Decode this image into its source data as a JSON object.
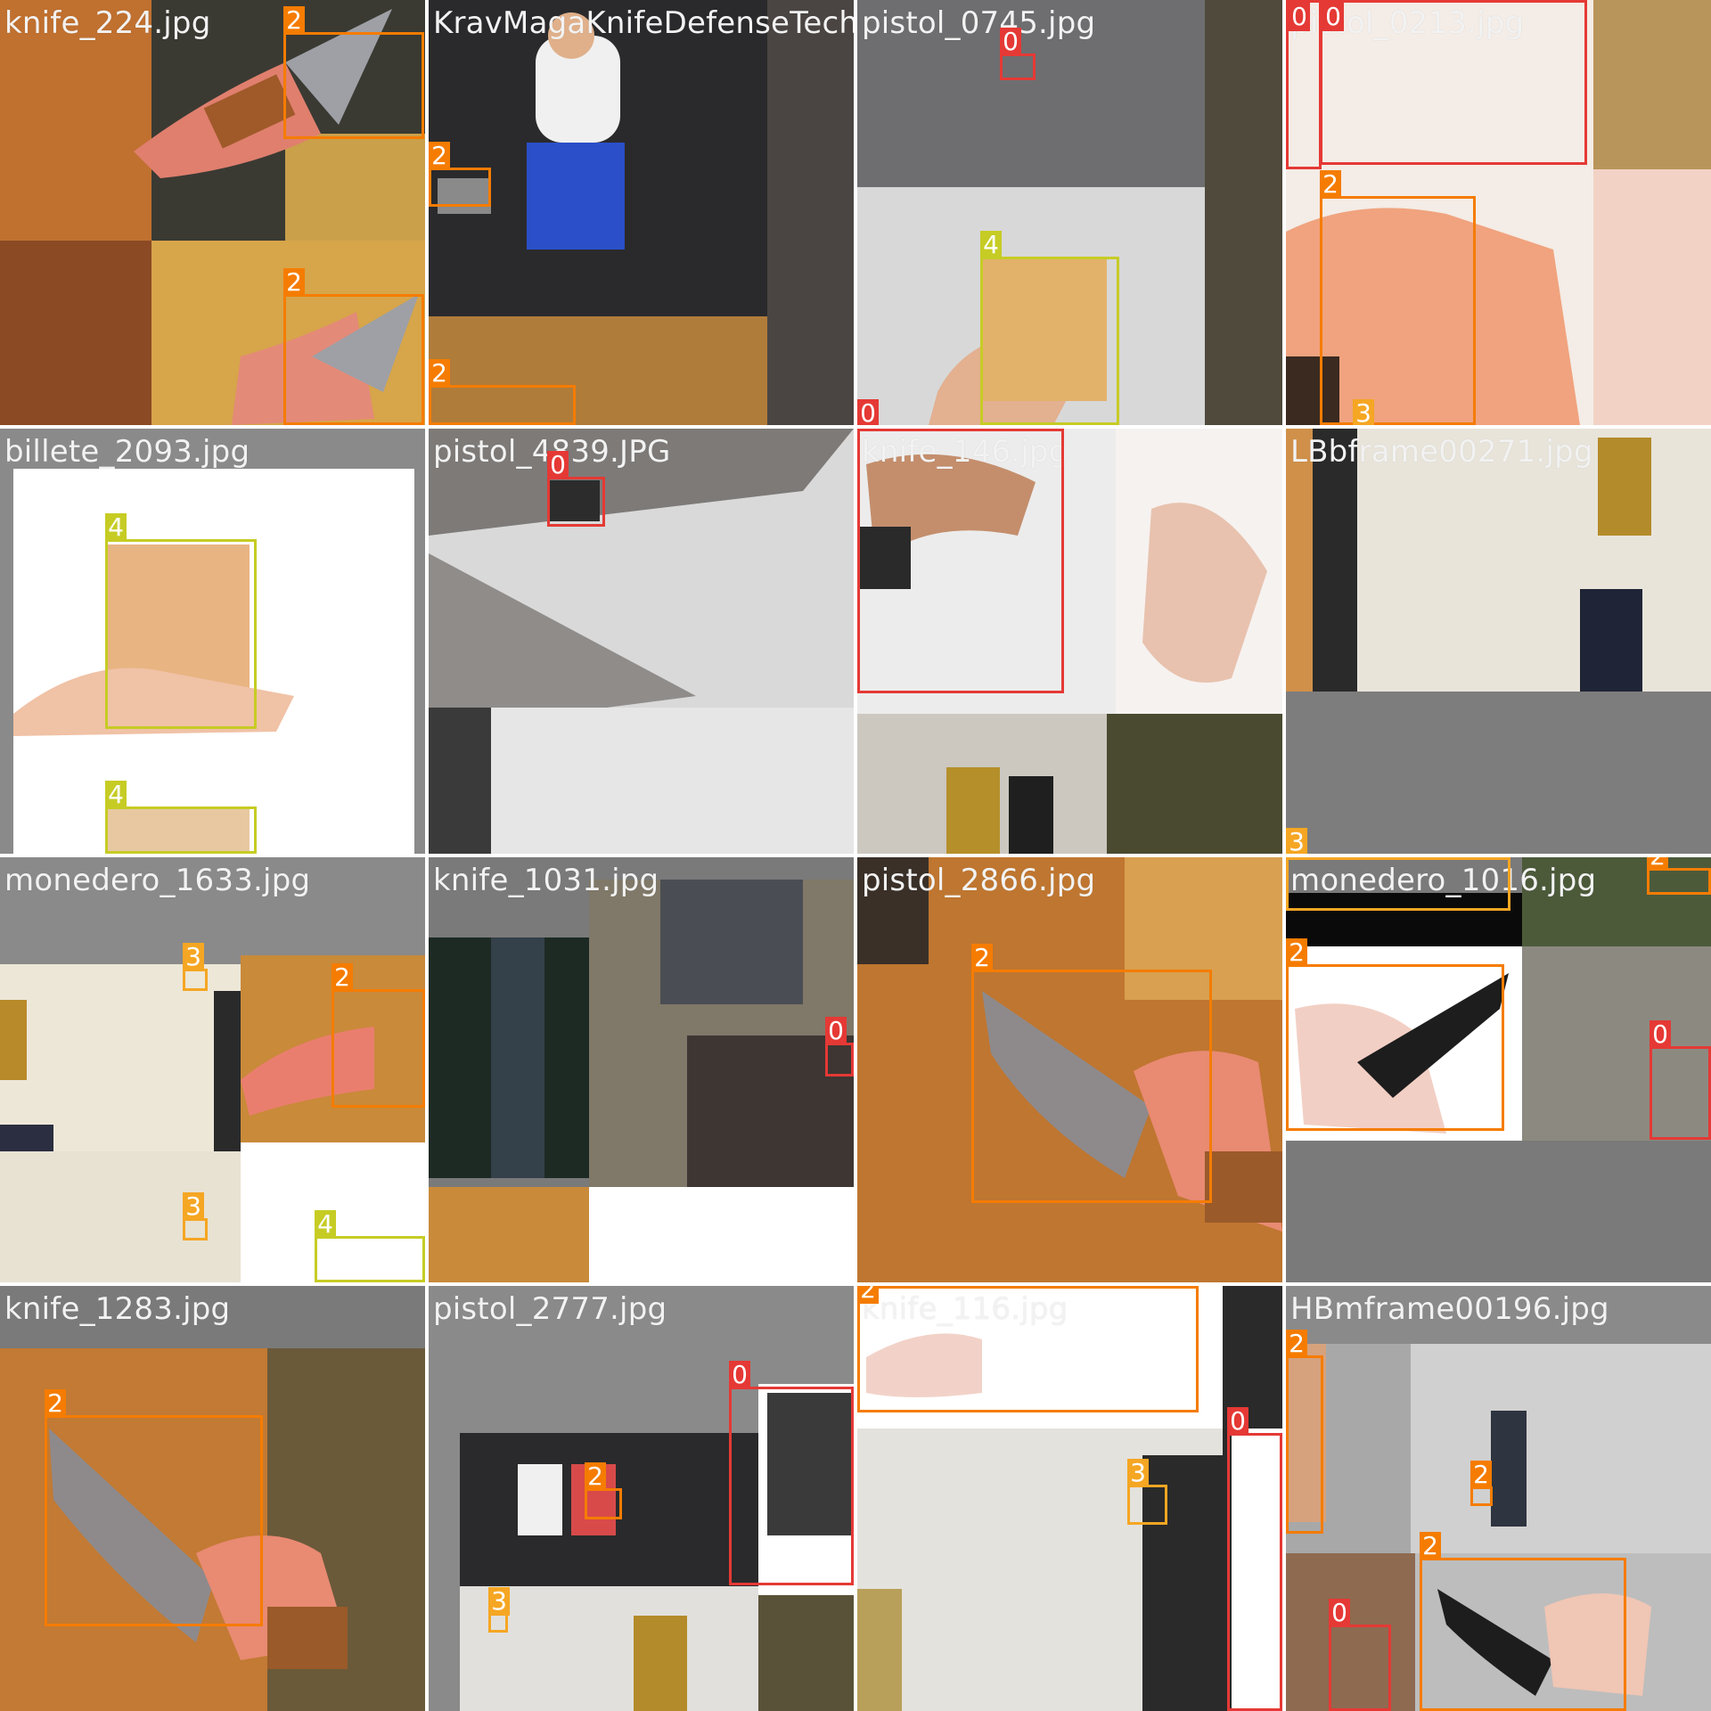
{
  "class_colors": {
    "0": "#e53935",
    "2": "#f57c00",
    "3": "#f5a623",
    "4": "#c6cc24"
  },
  "tiles": [
    {
      "filename": "knife_224.jpg",
      "labels": [
        "2",
        "2"
      ]
    },
    {
      "filename": "KravMagaKnifeDefenseTech",
      "labels": [
        "2",
        "2"
      ]
    },
    {
      "filename": "pistol_0745.jpg",
      "labels": [
        "0",
        "4",
        "0"
      ]
    },
    {
      "filename": "pistol_0213.jpg",
      "labels": [
        "0",
        "0",
        "2",
        "3"
      ]
    },
    {
      "filename": "billete_2093.jpg",
      "labels": [
        "4",
        "4"
      ]
    },
    {
      "filename": "pistol_4839.JPG",
      "labels": [
        "0"
      ]
    },
    {
      "filename": "knife_146.jpg",
      "labels": []
    },
    {
      "filename": "LBbframe00271.jpg",
      "labels": [
        "3"
      ]
    },
    {
      "filename": "monedero_1633.jpg",
      "labels": [
        "3",
        "2",
        "3",
        "4"
      ]
    },
    {
      "filename": "knife_1031.jpg",
      "labels": [
        "0"
      ]
    },
    {
      "filename": "pistol_2866.jpg",
      "labels": [
        "2"
      ]
    },
    {
      "filename": "monedero_1016.jpg",
      "labels": [
        "2",
        "2",
        "0"
      ]
    },
    {
      "filename": "knife_1283.jpg",
      "labels": [
        "2"
      ]
    },
    {
      "filename": "pistol_2777.jpg",
      "labels": [
        "0",
        "2",
        "3"
      ]
    },
    {
      "filename": "knife_116.jpg",
      "labels": [
        "2",
        "3",
        "0"
      ]
    },
    {
      "filename": "HBmframe00196.jpg",
      "labels": [
        "2",
        "2",
        "2",
        "0"
      ]
    }
  ]
}
